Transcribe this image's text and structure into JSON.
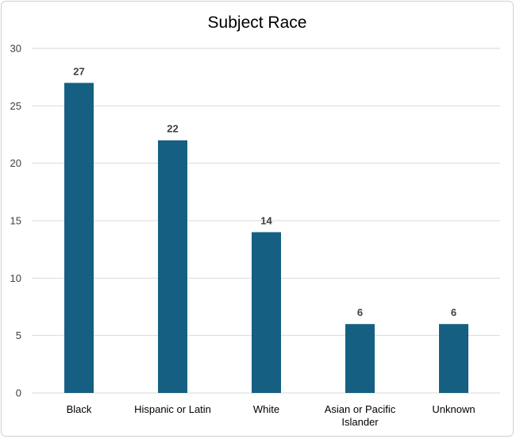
{
  "chart_data": {
    "type": "bar",
    "title": "Subject Race",
    "categories": [
      [
        "Black"
      ],
      [
        "Hispanic or Latin"
      ],
      [
        "White"
      ],
      [
        "Asian or Pacific",
        "Islander"
      ],
      [
        "Unknown"
      ]
    ],
    "values": [
      27,
      22,
      14,
      6,
      6
    ],
    "ylim": [
      0,
      30
    ],
    "yticks": [
      0,
      5,
      10,
      15,
      20,
      25,
      30
    ],
    "grid": true,
    "bar_color": "#156082",
    "grid_color": "#d9d9d9"
  }
}
